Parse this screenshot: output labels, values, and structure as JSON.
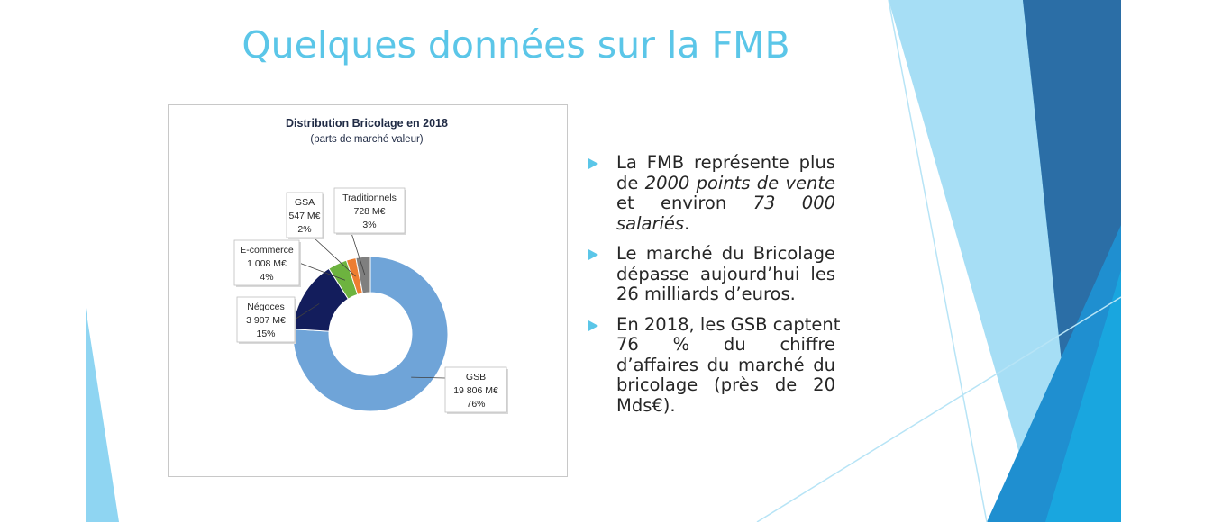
{
  "slide": {
    "title": "Quelques données sur la FMB"
  },
  "chart_data": {
    "type": "pie",
    "donut": true,
    "title": "Distribution Bricolage en 2018",
    "subtitle": "(parts de marché valeur)",
    "slices": [
      {
        "name": "GSB",
        "value": 19806,
        "value_label": "19 806  M€",
        "percent": 76,
        "percent_label": "76%",
        "color": "#6fa4d8"
      },
      {
        "name": "Négoces",
        "value": 3907,
        "value_label": "3 907  M€",
        "percent": 15,
        "percent_label": "15%",
        "color": "#131d5c"
      },
      {
        "name": "E-commerce",
        "value": 1008,
        "value_label": "1 008  M€",
        "percent": 4,
        "percent_label": "4%",
        "color": "#6db33f"
      },
      {
        "name": "GSA",
        "value": 547,
        "value_label": "547  M€",
        "percent": 2,
        "percent_label": "2%",
        "color": "#ed7d31"
      },
      {
        "name": "Traditionnels",
        "value": 728,
        "value_label": "728  M€",
        "percent": 3,
        "percent_label": "3%",
        "color": "#7f7f7f"
      }
    ]
  },
  "bullets": [
    {
      "lines": [
        [
          {
            "t": "La FMB représente plus"
          }
        ],
        [
          {
            "t": "de "
          },
          {
            "t": "2000 points de vente",
            "i": true
          }
        ],
        [
          {
            "t": "et environ "
          },
          {
            "t": "73 000",
            "i": true
          }
        ],
        [
          {
            "t": "salariés",
            "i": true
          },
          {
            "t": "."
          }
        ]
      ]
    },
    {
      "lines": [
        [
          {
            "t": "Le marché du Bricolage"
          }
        ],
        [
          {
            "t": "dépasse aujourd’hui les"
          }
        ],
        [
          {
            "t": "26 milliards d’euros."
          }
        ]
      ]
    },
    {
      "lines": [
        [
          {
            "t": "En 2018, les GSB captent"
          }
        ],
        [
          {
            "t": "76 % du chiffre"
          }
        ],
        [
          {
            "t": "d’affaires du marché du"
          }
        ],
        [
          {
            "t": "bricolage (près de 20"
          }
        ],
        [
          {
            "t": "Mds€)."
          }
        ]
      ]
    }
  ],
  "theme": {
    "accent": "#5bc6e8",
    "text": "#262626",
    "chart_title": "#1f2a44"
  }
}
